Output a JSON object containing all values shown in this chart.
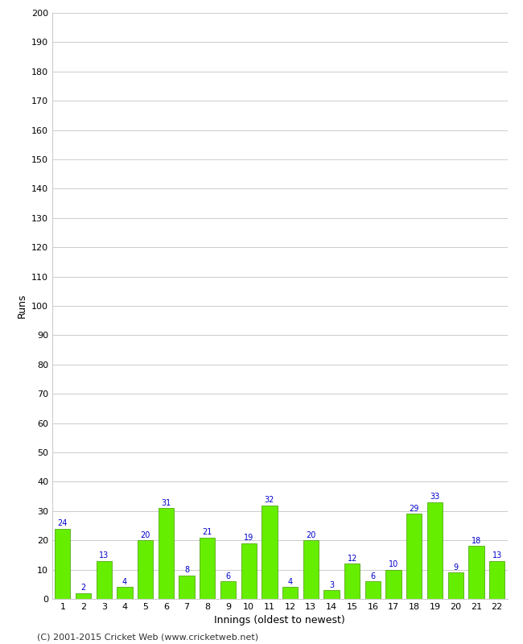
{
  "xlabel": "Innings (oldest to newest)",
  "ylabel": "Runs",
  "values": [
    24,
    2,
    13,
    4,
    20,
    31,
    8,
    21,
    6,
    19,
    32,
    4,
    20,
    3,
    12,
    6,
    10,
    29,
    33,
    9,
    18,
    13
  ],
  "categories": [
    "1",
    "2",
    "3",
    "4",
    "5",
    "6",
    "7",
    "8",
    "9",
    "10",
    "11",
    "12",
    "13",
    "14",
    "15",
    "16",
    "17",
    "18",
    "19",
    "20",
    "21",
    "22"
  ],
  "bar_color": "#66ee00",
  "bar_edge_color": "#449900",
  "label_color": "#0000cc",
  "ylim": [
    0,
    200
  ],
  "yticks": [
    0,
    10,
    20,
    30,
    40,
    50,
    60,
    70,
    80,
    90,
    100,
    110,
    120,
    130,
    140,
    150,
    160,
    170,
    180,
    190,
    200
  ],
  "background_color": "#ffffff",
  "plot_bg_color": "#ffffff",
  "footer": "(C) 2001-2015 Cricket Web (www.cricketweb.net)",
  "label_fontsize": 9,
  "tick_fontsize": 8,
  "footer_fontsize": 8,
  "value_label_fontsize": 7
}
